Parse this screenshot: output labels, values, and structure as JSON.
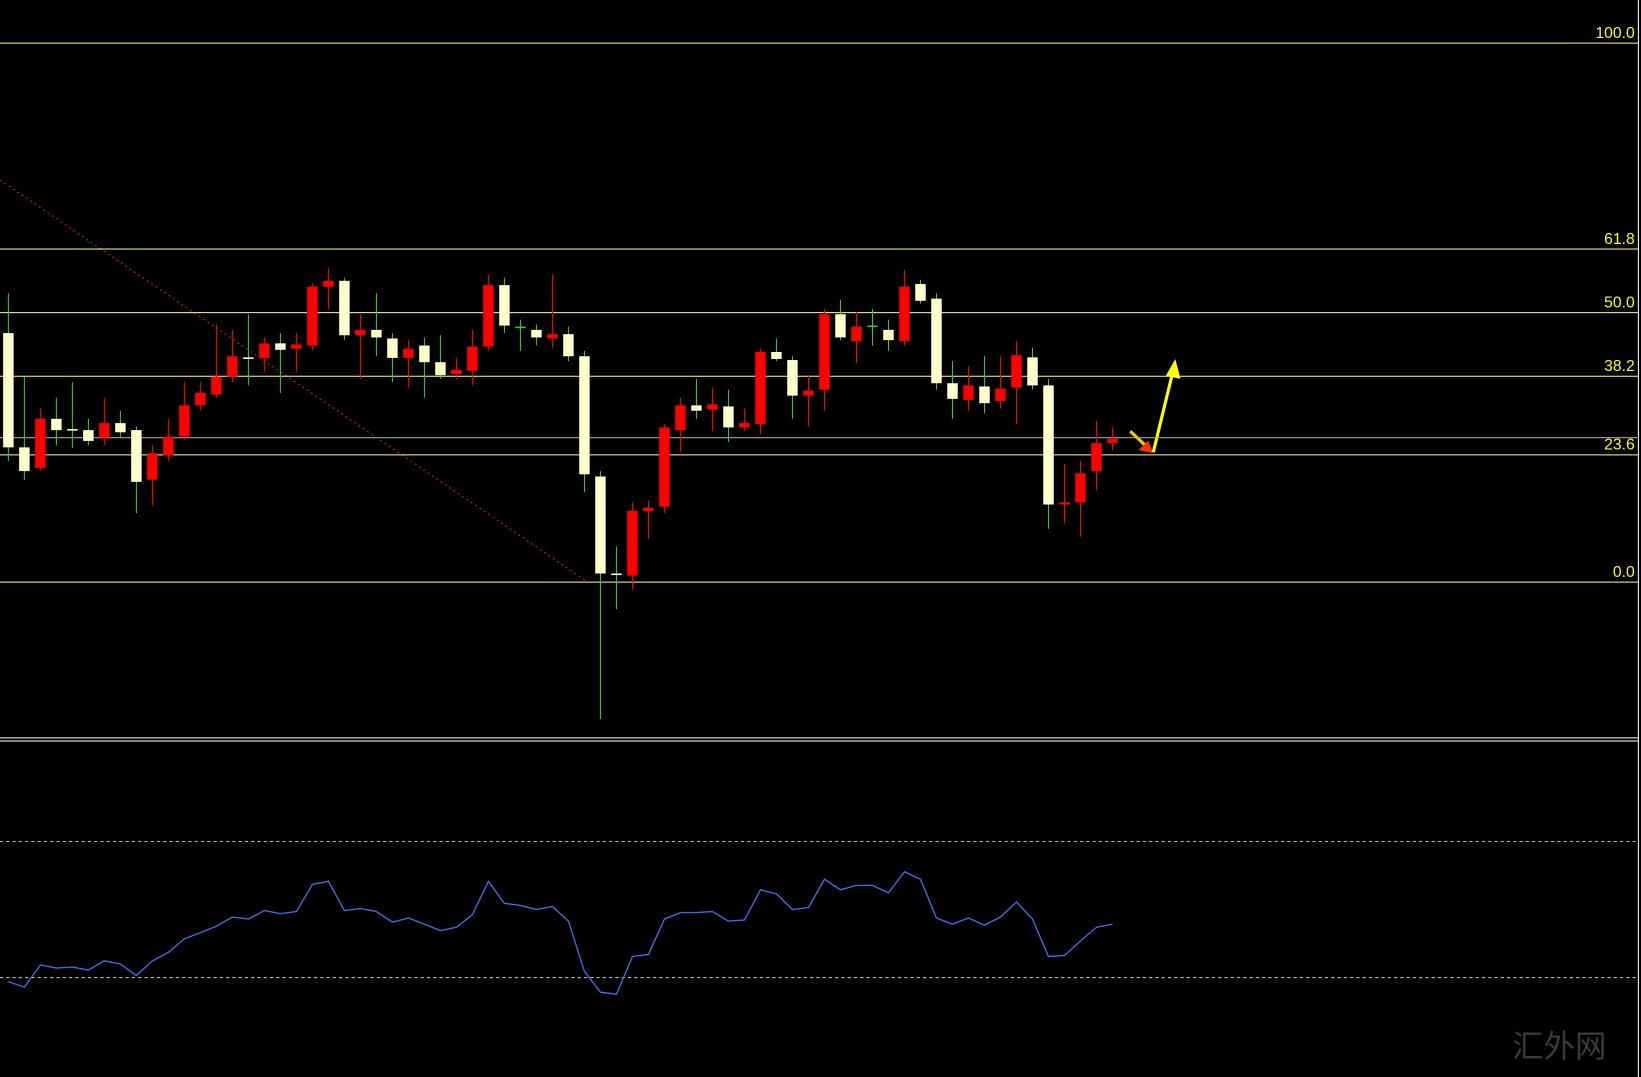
{
  "chart_data": [
    {
      "type": "candlestick",
      "ylim": [
        -28.9,
        108
      ],
      "yticks": [
        {
          "value": 100,
          "label": "100.0"
        },
        {
          "value": 61.8,
          "label": "61.8"
        },
        {
          "value": 50,
          "label": "50.0"
        },
        {
          "value": 38.2,
          "label": "38.2"
        },
        {
          "value": 23.6,
          "label": "23.6"
        },
        {
          "value": 0,
          "label": "0.0"
        }
      ],
      "price_line": 26.8,
      "open": [
        46.2,
        25.0,
        21.2,
        30.3,
        28.4,
        28.2,
        26.8,
        29.5,
        28.2,
        19.0,
        23.5,
        27.0,
        32.8,
        34.8,
        38.1,
        41.7,
        41.6,
        44.3,
        43.3,
        43.9,
        54.8,
        55.9,
        45.8,
        46.8,
        45.2,
        41.6,
        43.9,
        40.8,
        38.6,
        39.2,
        43.7,
        55.1,
        47.4,
        46.8,
        45.2,
        46.0,
        41.9,
        19.6,
        1.6,
        1.2,
        13.2,
        14.0,
        28.2,
        32.8,
        32.0,
        32.6,
        28.7,
        29.3,
        42.7,
        41.2,
        34.6,
        35.7,
        49.7,
        44.7,
        47.6,
        46.8,
        44.7,
        55.3,
        52.6,
        36.9,
        33.8,
        36.3,
        33.6,
        36.1,
        41.7,
        36.5,
        14.4,
        14.8,
        20.6,
        25.8
      ],
      "high": [
        53.6,
        38.1,
        32.2,
        34.2,
        37.1,
        30.3,
        34.2,
        31.8,
        28.9,
        25.4,
        30.3,
        37.1,
        37.1,
        47.8,
        46.8,
        49.7,
        45.4,
        46.2,
        46.2,
        55.5,
        58.3,
        56.5,
        49.7,
        53.6,
        46.2,
        44.9,
        45.4,
        45.8,
        41.6,
        46.8,
        57.1,
        56.5,
        48.7,
        47.8,
        57.1,
        47.4,
        42.9,
        20.6,
        6.6,
        14.8,
        15.1,
        29.3,
        34.2,
        37.7,
        36.1,
        35.7,
        32.2,
        43.3,
        45.2,
        41.9,
        38.4,
        50.7,
        52.4,
        50.1,
        50.7,
        48.7,
        57.9,
        56.1,
        53.6,
        41.0,
        40.0,
        41.9,
        41.9,
        44.7,
        43.5,
        37.7,
        21.9,
        22.5,
        29.9,
        28.7
      ],
      "low": [
        22.5,
        19.0,
        20.6,
        25.4,
        24.9,
        25.4,
        25.4,
        26.8,
        12.8,
        14.2,
        22.5,
        26.4,
        31.8,
        34.2,
        37.1,
        36.5,
        39.0,
        35.1,
        39.0,
        42.9,
        50.7,
        44.9,
        37.7,
        41.9,
        37.1,
        36.1,
        34.2,
        37.7,
        37.7,
        36.5,
        42.9,
        46.2,
        42.9,
        43.9,
        43.5,
        41.0,
        16.7,
        -25.4,
        -5.0,
        -1.4,
        8.0,
        12.8,
        24.1,
        30.3,
        28.0,
        26.0,
        28.0,
        27.4,
        41.0,
        30.3,
        28.9,
        31.8,
        44.9,
        40.6,
        43.9,
        42.9,
        43.9,
        51.7,
        35.7,
        30.3,
        31.8,
        31.3,
        32.2,
        29.3,
        35.7,
        9.9,
        10.9,
        8.4,
        17.1,
        24.5
      ],
      "close": [
        25.0,
        20.6,
        30.3,
        28.2,
        28.2,
        26.2,
        29.5,
        27.8,
        18.6,
        23.9,
        27.0,
        32.8,
        35.1,
        38.1,
        41.9,
        41.4,
        44.3,
        43.1,
        44.1,
        54.8,
        55.9,
        45.8,
        46.8,
        45.4,
        41.6,
        43.3,
        40.8,
        38.4,
        39.4,
        43.7,
        55.1,
        47.6,
        47.4,
        45.4,
        46.0,
        41.9,
        20.0,
        1.6,
        1.4,
        13.2,
        13.8,
        28.7,
        32.8,
        31.8,
        33.0,
        28.7,
        29.5,
        42.7,
        41.4,
        34.6,
        35.5,
        49.7,
        45.4,
        47.4,
        47.6,
        44.9,
        54.8,
        52.2,
        36.9,
        34.0,
        36.5,
        33.2,
        35.9,
        42.1,
        36.5,
        14.4,
        14.8,
        20.2,
        25.8,
        26.6
      ],
      "up_color": "#ff0000",
      "down_color": "#ffffcc",
      "doji_color": "#33cc33",
      "level_color": "#ffff80",
      "price_line_color": "#a0a0a0"
    },
    {
      "type": "line",
      "ylim": [
        0,
        100
      ],
      "levels": [
        70,
        30
      ],
      "color": "#3d6fe0",
      "values": [
        28.8,
        27.2,
        33.7,
        32.8,
        33.1,
        32.2,
        34.9,
        34.0,
        30.6,
        34.9,
        37.4,
        41.4,
        43.2,
        45.1,
        47.8,
        47.2,
        49.7,
        48.8,
        49.4,
        57.4,
        58.3,
        49.7,
        50.3,
        49.4,
        46.3,
        47.5,
        45.7,
        43.8,
        44.8,
        48.5,
        58.3,
        51.8,
        51.2,
        50.0,
        50.9,
        46.6,
        31.8,
        25.7,
        25.1,
        36.2,
        36.8,
        47.2,
        49.1,
        49.1,
        49.4,
        46.6,
        46.9,
        55.8,
        54.6,
        50.0,
        50.6,
        58.9,
        55.8,
        57.1,
        57.1,
        54.9,
        61.1,
        58.9,
        47.5,
        45.7,
        47.5,
        45.4,
        47.8,
        52.2,
        47.2,
        36.2,
        36.5,
        40.8,
        44.8,
        45.7
      ]
    }
  ],
  "watermark": "汇外网"
}
